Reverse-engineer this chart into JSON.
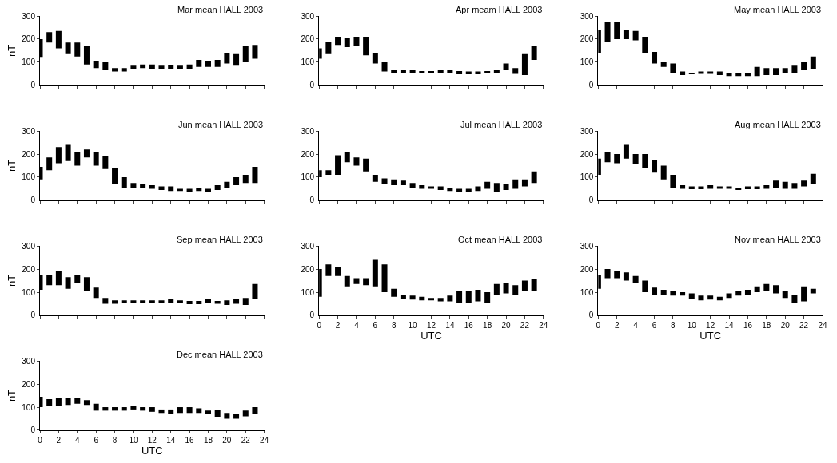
{
  "chart_data": [
    {
      "type": "bar",
      "title": "Mar mean HALL 2003",
      "ylabel": "nT",
      "x": [
        0,
        1,
        2,
        3,
        4,
        5,
        6,
        7,
        8,
        9,
        10,
        11,
        12,
        13,
        14,
        15,
        16,
        17,
        18,
        19,
        20,
        21,
        22,
        23
      ],
      "base": [
        120,
        185,
        160,
        135,
        125,
        90,
        75,
        65,
        60,
        60,
        70,
        75,
        70,
        70,
        72,
        70,
        70,
        80,
        80,
        80,
        95,
        85,
        100,
        115
      ],
      "values": [
        80,
        45,
        75,
        50,
        60,
        80,
        30,
        35,
        15,
        15,
        15,
        15,
        20,
        15,
        16,
        15,
        20,
        30,
        25,
        30,
        45,
        50,
        70,
        60
      ],
      "color": "#000000",
      "xlim": [
        0,
        24
      ],
      "xticks": [
        0,
        2,
        4,
        6,
        8,
        10,
        12,
        14,
        16,
        18,
        20,
        22,
        24
      ],
      "ylim": [
        0,
        300
      ],
      "yticks": [
        0,
        100,
        200,
        300
      ],
      "tick_labels": "y"
    },
    {
      "type": "bar",
      "title": "Apr meam HALL 2003",
      "x": [
        0,
        1,
        2,
        3,
        4,
        5,
        6,
        7,
        8,
        9,
        10,
        11,
        12,
        13,
        14,
        15,
        16,
        17,
        18,
        19,
        20,
        21,
        22,
        23
      ],
      "base": [
        115,
        135,
        175,
        165,
        170,
        130,
        95,
        60,
        55,
        55,
        55,
        52,
        55,
        55,
        55,
        48,
        48,
        48,
        52,
        55,
        65,
        50,
        45,
        110
      ],
      "values": [
        45,
        55,
        35,
        40,
        40,
        80,
        45,
        40,
        10,
        10,
        10,
        10,
        5,
        10,
        10,
        14,
        12,
        12,
        10,
        10,
        30,
        25,
        90,
        60
      ],
      "color": "#000000",
      "xlim": [
        0,
        24
      ],
      "xticks": [
        0,
        2,
        4,
        6,
        8,
        10,
        12,
        14,
        16,
        18,
        20,
        22,
        24
      ],
      "ylim": [
        0,
        300
      ],
      "yticks": [
        0,
        100,
        200,
        300
      ],
      "tick_labels": "y"
    },
    {
      "type": "bar",
      "title": "May mean HALL 2003",
      "x": [
        0,
        1,
        2,
        3,
        4,
        5,
        6,
        7,
        8,
        9,
        10,
        11,
        12,
        13,
        14,
        15,
        16,
        17,
        18,
        19,
        20,
        21,
        22,
        23
      ],
      "base": [
        140,
        190,
        200,
        200,
        195,
        140,
        95,
        80,
        55,
        45,
        50,
        50,
        50,
        45,
        40,
        40,
        40,
        40,
        45,
        45,
        55,
        55,
        65,
        70
      ],
      "values": [
        100,
        85,
        75,
        40,
        40,
        70,
        50,
        20,
        40,
        15,
        5,
        10,
        10,
        15,
        15,
        15,
        15,
        40,
        30,
        30,
        20,
        30,
        35,
        55
      ],
      "color": "#000000",
      "xlim": [
        0,
        24
      ],
      "xticks": [
        0,
        2,
        4,
        6,
        8,
        10,
        12,
        14,
        16,
        18,
        20,
        22,
        24
      ],
      "ylim": [
        0,
        300
      ],
      "yticks": [
        0,
        100,
        200,
        300
      ],
      "tick_labels": "y"
    },
    {
      "type": "bar",
      "title": "Jun mean HALL 2003",
      "ylabel": "nT",
      "x": [
        0,
        1,
        2,
        3,
        4,
        5,
        6,
        7,
        8,
        9,
        10,
        11,
        12,
        13,
        14,
        15,
        16,
        17,
        18,
        19,
        20,
        21,
        22,
        23
      ],
      "base": [
        90,
        130,
        160,
        170,
        150,
        185,
        150,
        135,
        70,
        55,
        55,
        55,
        50,
        45,
        40,
        40,
        35,
        40,
        35,
        45,
        55,
        65,
        75,
        75
      ],
      "values": [
        55,
        55,
        70,
        70,
        60,
        35,
        60,
        55,
        70,
        45,
        20,
        15,
        15,
        15,
        20,
        10,
        15,
        15,
        15,
        20,
        25,
        35,
        35,
        70
      ],
      "color": "#000000",
      "xlim": [
        0,
        24
      ],
      "xticks": [
        0,
        2,
        4,
        6,
        8,
        10,
        12,
        14,
        16,
        18,
        20,
        22,
        24
      ],
      "ylim": [
        0,
        300
      ],
      "yticks": [
        0,
        100,
        200,
        300
      ],
      "tick_labels": "y"
    },
    {
      "type": "bar",
      "title": "Jul mean HALL 2003",
      "x": [
        0,
        1,
        2,
        3,
        4,
        5,
        6,
        7,
        8,
        9,
        10,
        11,
        12,
        13,
        14,
        15,
        16,
        17,
        18,
        19,
        20,
        21,
        22,
        23
      ],
      "base": [
        100,
        110,
        110,
        165,
        150,
        125,
        80,
        70,
        65,
        65,
        55,
        50,
        50,
        45,
        40,
        38,
        38,
        40,
        50,
        35,
        45,
        50,
        60,
        75
      ],
      "values": [
        30,
        20,
        85,
        45,
        35,
        55,
        30,
        25,
        25,
        20,
        20,
        15,
        10,
        15,
        15,
        12,
        12,
        20,
        30,
        40,
        25,
        40,
        30,
        50
      ],
      "color": "#000000",
      "xlim": [
        0,
        24
      ],
      "xticks": [
        0,
        2,
        4,
        6,
        8,
        10,
        12,
        14,
        16,
        18,
        20,
        22,
        24
      ],
      "ylim": [
        0,
        300
      ],
      "yticks": [
        0,
        100,
        200,
        300
      ],
      "tick_labels": "y"
    },
    {
      "type": "bar",
      "title": "Aug mean HALL 2003",
      "x": [
        0,
        1,
        2,
        3,
        4,
        5,
        6,
        7,
        8,
        9,
        10,
        11,
        12,
        13,
        14,
        15,
        16,
        17,
        18,
        19,
        20,
        21,
        22,
        23
      ],
      "base": [
        110,
        165,
        160,
        180,
        155,
        140,
        120,
        90,
        55,
        50,
        48,
        48,
        50,
        50,
        50,
        45,
        48,
        48,
        50,
        55,
        50,
        50,
        60,
        70
      ],
      "values": [
        70,
        45,
        40,
        60,
        45,
        60,
        55,
        60,
        55,
        15,
        12,
        12,
        15,
        10,
        10,
        10,
        12,
        12,
        15,
        30,
        30,
        25,
        25,
        45
      ],
      "color": "#000000",
      "xlim": [
        0,
        24
      ],
      "xticks": [
        0,
        2,
        4,
        6,
        8,
        10,
        12,
        14,
        16,
        18,
        20,
        22,
        24
      ],
      "ylim": [
        0,
        300
      ],
      "yticks": [
        0,
        100,
        200,
        300
      ],
      "tick_labels": "y"
    },
    {
      "type": "bar",
      "title": "Sep mean HALL 2003",
      "ylabel": "nT",
      "x": [
        0,
        1,
        2,
        3,
        4,
        5,
        6,
        7,
        8,
        9,
        10,
        11,
        12,
        13,
        14,
        15,
        16,
        17,
        18,
        19,
        20,
        21,
        22,
        23
      ],
      "base": [
        110,
        130,
        130,
        115,
        140,
        105,
        75,
        50,
        50,
        55,
        55,
        55,
        55,
        55,
        55,
        52,
        48,
        48,
        55,
        50,
        45,
        50,
        45,
        70
      ],
      "values": [
        65,
        45,
        60,
        50,
        35,
        60,
        45,
        25,
        15,
        10,
        10,
        10,
        10,
        10,
        15,
        13,
        14,
        14,
        15,
        12,
        20,
        20,
        30,
        65
      ],
      "color": "#000000",
      "xlim": [
        0,
        24
      ],
      "xticks": [
        0,
        2,
        4,
        6,
        8,
        10,
        12,
        14,
        16,
        18,
        20,
        22,
        24
      ],
      "ylim": [
        0,
        300
      ],
      "yticks": [
        0,
        100,
        200,
        300
      ],
      "tick_labels": "y"
    },
    {
      "type": "bar",
      "title": "Oct mean HALL 2003",
      "xlabel": "UTC",
      "x": [
        0,
        1,
        2,
        3,
        4,
        5,
        6,
        7,
        8,
        9,
        10,
        11,
        12,
        13,
        14,
        15,
        16,
        17,
        18,
        19,
        20,
        21,
        22,
        23
      ],
      "base": [
        80,
        170,
        170,
        125,
        135,
        130,
        125,
        100,
        80,
        70,
        68,
        65,
        65,
        60,
        60,
        55,
        55,
        60,
        55,
        90,
        95,
        90,
        105,
        105
      ],
      "values": [
        120,
        50,
        40,
        45,
        25,
        30,
        115,
        120,
        35,
        20,
        17,
        15,
        10,
        15,
        25,
        50,
        50,
        50,
        45,
        45,
        45,
        40,
        45,
        50
      ],
      "color": "#000000",
      "xlim": [
        0,
        24
      ],
      "xticks": [
        0,
        2,
        4,
        6,
        8,
        10,
        12,
        14,
        16,
        18,
        20,
        22,
        24
      ],
      "ylim": [
        0,
        300
      ],
      "yticks": [
        0,
        100,
        200,
        300
      ]
    },
    {
      "type": "bar",
      "title": "Nov mean HALL 2003",
      "xlabel": "UTC",
      "x": [
        0,
        1,
        2,
        3,
        4,
        5,
        6,
        7,
        8,
        9,
        10,
        11,
        12,
        13,
        14,
        15,
        16,
        17,
        18,
        19,
        20,
        21,
        22,
        23
      ],
      "base": [
        115,
        160,
        160,
        150,
        140,
        100,
        90,
        90,
        85,
        85,
        70,
        65,
        68,
        65,
        75,
        85,
        90,
        100,
        105,
        95,
        75,
        55,
        60,
        95
      ],
      "values": [
        60,
        40,
        30,
        35,
        30,
        50,
        30,
        20,
        20,
        15,
        25,
        20,
        17,
        15,
        20,
        20,
        20,
        25,
        30,
        35,
        30,
        35,
        65,
        20
      ],
      "color": "#000000",
      "xlim": [
        0,
        24
      ],
      "xticks": [
        0,
        2,
        4,
        6,
        8,
        10,
        12,
        14,
        16,
        18,
        20,
        22,
        24
      ],
      "ylim": [
        0,
        300
      ],
      "yticks": [
        0,
        100,
        200,
        300
      ]
    },
    {
      "type": "bar",
      "title": "Dec mean HALL 2003",
      "ylabel": "nT",
      "xlabel": "UTC",
      "x": [
        0,
        1,
        2,
        3,
        4,
        5,
        6,
        7,
        8,
        9,
        10,
        11,
        12,
        13,
        14,
        15,
        16,
        17,
        18,
        19,
        20,
        21,
        22,
        23
      ],
      "base": [
        100,
        105,
        105,
        110,
        115,
        110,
        85,
        85,
        85,
        85,
        90,
        85,
        80,
        75,
        70,
        75,
        75,
        75,
        70,
        55,
        50,
        50,
        60,
        70
      ],
      "values": [
        45,
        30,
        35,
        30,
        25,
        20,
        30,
        15,
        15,
        15,
        15,
        15,
        20,
        15,
        20,
        25,
        25,
        20,
        15,
        35,
        25,
        20,
        25,
        30
      ],
      "color": "#000000",
      "xlim": [
        0,
        24
      ],
      "xticks": [
        0,
        2,
        4,
        6,
        8,
        10,
        12,
        14,
        16,
        18,
        20,
        22,
        24
      ],
      "ylim": [
        0,
        300
      ],
      "yticks": [
        0,
        100,
        200,
        300
      ]
    }
  ]
}
